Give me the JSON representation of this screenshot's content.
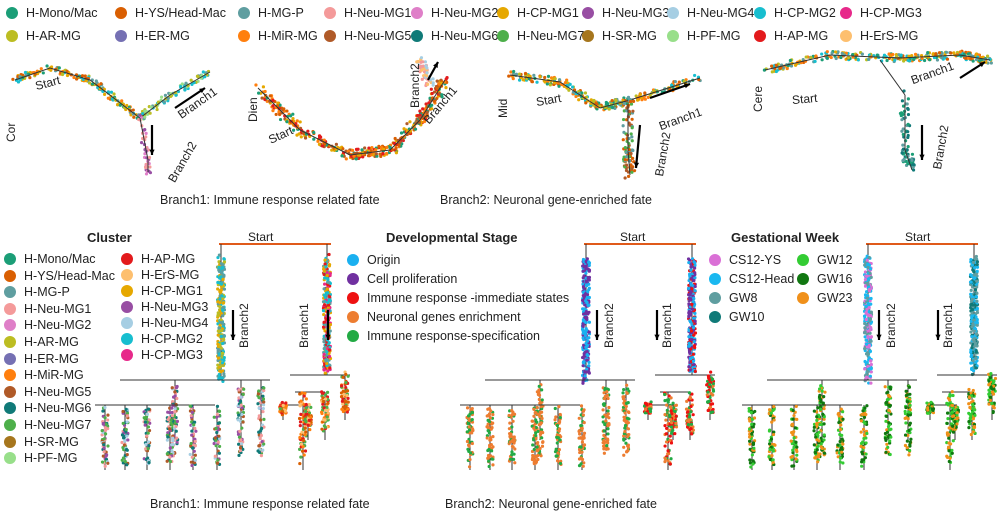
{
  "clusters": [
    {
      "label": "H-Mono/Mac",
      "color": "#1b9e77"
    },
    {
      "label": "H-YS/Head-Mac",
      "color": "#d95f02"
    },
    {
      "label": "H-MG-P",
      "color": "#5f9ea0"
    },
    {
      "label": "H-Neu-MG1",
      "color": "#f49a9a"
    },
    {
      "label": "H-Neu-MG2",
      "color": "#df7fc8"
    },
    {
      "label": "H-CP-MG1",
      "color": "#e6a800"
    },
    {
      "label": "H-Neu-MG3",
      "color": "#984ea3"
    },
    {
      "label": "H-Neu-MG4",
      "color": "#a6cee3"
    },
    {
      "label": "H-CP-MG2",
      "color": "#17becf"
    },
    {
      "label": "H-CP-MG3",
      "color": "#e7298a"
    },
    {
      "label": "H-AR-MG",
      "color": "#bcbd22"
    },
    {
      "label": "H-ER-MG",
      "color": "#7570b3"
    },
    {
      "label": "H-MiR-MG",
      "color": "#ff7f0e"
    },
    {
      "label": "H-Neu-MG5",
      "color": "#b05a28"
    },
    {
      "label": "H-Neu-MG6",
      "color": "#107a78"
    },
    {
      "label": "H-Neu-MG7",
      "color": "#4daf4a"
    },
    {
      "label": "H-SR-MG",
      "color": "#a6761d"
    },
    {
      "label": "H-PF-MG",
      "color": "#98df8a"
    },
    {
      "label": "H-AP-MG",
      "color": "#e31a1c"
    },
    {
      "label": "H-ErS-MG",
      "color": "#fdbf6f"
    }
  ],
  "regions": [
    "Cor",
    "Dien",
    "Mid",
    "Cere"
  ],
  "labels": {
    "start": "Start",
    "branch1": "Branch1",
    "branch2": "Branch2"
  },
  "captions": {
    "branch1": "Branch1: Immune response related fate",
    "branch2": "Branch2: Neuronal gene-enriched fate"
  },
  "cluster_legend": {
    "title": "Cluster",
    "col1": [
      "H-Mono/Mac",
      "H-YS/Head-Mac",
      "H-MG-P",
      "H-Neu-MG1",
      "H-Neu-MG2",
      "H-AR-MG",
      "H-ER-MG",
      "H-MiR-MG",
      "H-Neu-MG5",
      "H-Neu-MG6",
      "H-Neu-MG7",
      "H-SR-MG",
      "H-PF-MG"
    ],
    "col2": [
      "H-AP-MG",
      "H-ErS-MG",
      "H-CP-MG1",
      "H-Neu-MG3",
      "H-Neu-MG4",
      "H-CP-MG2",
      "H-CP-MG3"
    ]
  },
  "stage_legend": {
    "title": "Developmental  Stage",
    "items": [
      {
        "label": "Origin",
        "color": "#1ab0f0"
      },
      {
        "label": "Cell proliferation",
        "color": "#7030a0"
      },
      {
        "label": "Immune response -immediate states",
        "color": "#ee1111"
      },
      {
        "label": "Neuronal genes enrichment",
        "color": "#ed7d31"
      },
      {
        "label": "Immune response-specification",
        "color": "#22aa44"
      }
    ]
  },
  "week_legend": {
    "title": "Gestational  Week",
    "items": [
      {
        "label": "CS12-YS",
        "color": "#da70d6"
      },
      {
        "label": "GW12",
        "color": "#33cc33"
      },
      {
        "label": "CS12-Head",
        "color": "#1ab8f0"
      },
      {
        "label": "GW16",
        "color": "#117711"
      },
      {
        "label": "GW8",
        "color": "#5f9ea0"
      },
      {
        "label": "GW23",
        "color": "#f0901a"
      },
      {
        "label": "GW10",
        "color": "#107a78"
      }
    ]
  }
}
